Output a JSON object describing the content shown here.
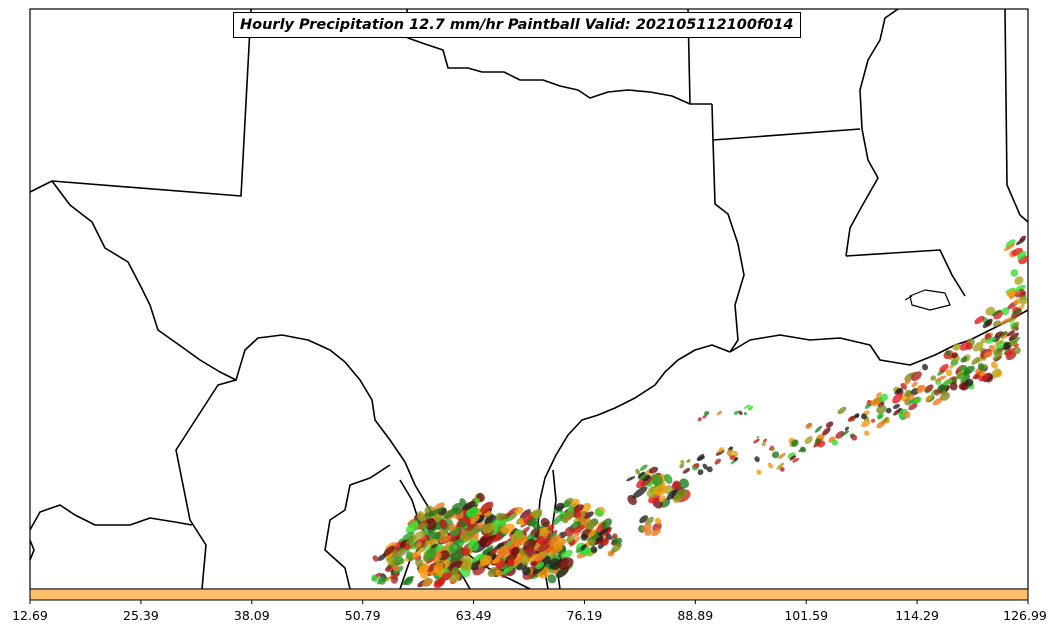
{
  "title": "Hourly Precipitation 12.7 mm/hr Paintball Valid: 202105112100f014",
  "colorbar": {
    "color": "#FDBF6A",
    "ticks": [
      "12.69",
      "25.39",
      "38.09",
      "50.79",
      "63.49",
      "76.19",
      "88.89",
      "101.59",
      "114.29",
      "126.99"
    ]
  },
  "colors": {
    "border": "#000000",
    "member_palette": [
      "#f29a0c",
      "#ef7b1f",
      "#e31a1c",
      "#b22222",
      "#2ca02c",
      "#1f7a1f",
      "#7f8a1e",
      "#a6a21c",
      "#6b0f0f",
      "#33dd33",
      "#222222"
    ]
  }
}
